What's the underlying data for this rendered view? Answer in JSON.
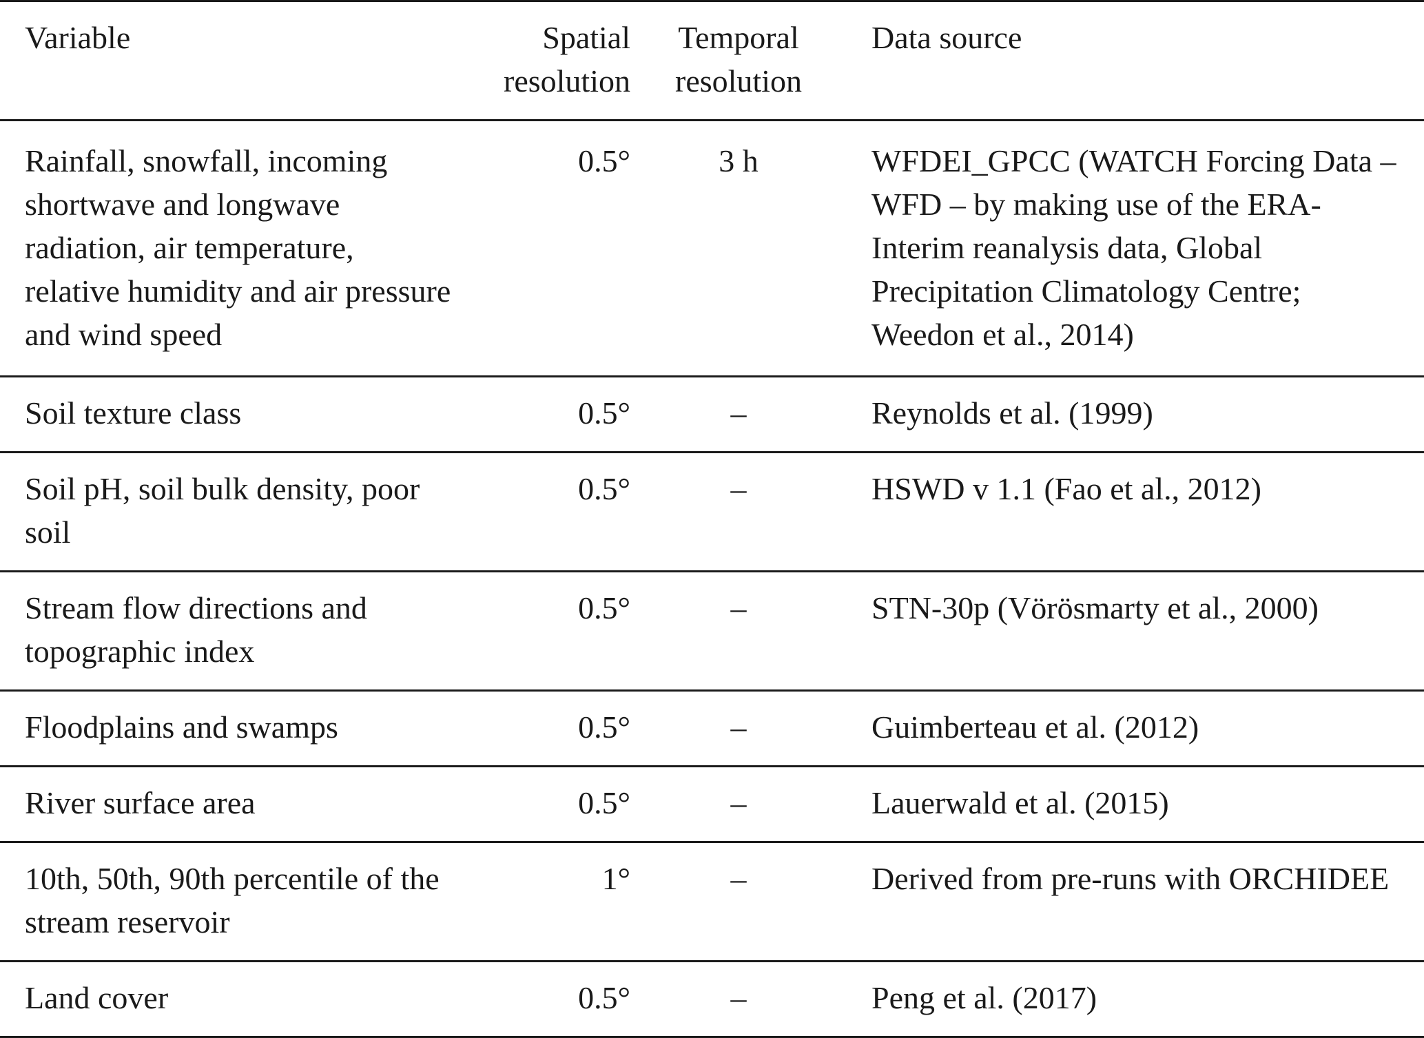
{
  "header": {
    "variable": "Variable",
    "spatial": "Spatial\nresolution",
    "temporal": "Temporal\nresolution",
    "source": "Data source"
  },
  "rows": [
    {
      "variable": "Rainfall, snowfall, incoming shortwave and longwave radiation, air temperature, relative humidity and air pressure and wind speed",
      "spatial": "0.5°",
      "temporal": "3 h",
      "source": "WFDEI_GPCC (WATCH Forcing Data – WFD – by making use of the ERA-Interim reanalysis data, Global Precipitation Climatology Centre; Weedon et al., 2014)"
    },
    {
      "variable": "Soil texture class",
      "spatial": "0.5°",
      "temporal": "–",
      "source": "Reynolds et al. (1999)"
    },
    {
      "variable": "Soil pH, soil bulk density, poor soil",
      "spatial": "0.5°",
      "temporal": "–",
      "source": "HSWD v 1.1 (Fao et al., 2012)"
    },
    {
      "variable": "Stream flow directions and topographic index",
      "spatial": "0.5°",
      "temporal": "–",
      "source": "STN-30p (Vörösmarty et al., 2000)"
    },
    {
      "variable": "Floodplains and swamps",
      "spatial": "0.5°",
      "temporal": "–",
      "source": "Guimberteau et al. (2012)"
    },
    {
      "variable": "River surface area",
      "spatial": "0.5°",
      "temporal": "–",
      "source": "Lauerwald et al. (2015)"
    },
    {
      "variable": "10th, 50th, 90th percentile of the stream reservoir",
      "spatial": "1°",
      "temporal": "–",
      "source": "Derived from pre-runs with ORCHIDEE"
    },
    {
      "variable": "Land cover",
      "spatial": "0.5°",
      "temporal": "–",
      "source": "Peng et al. (2017)"
    }
  ]
}
